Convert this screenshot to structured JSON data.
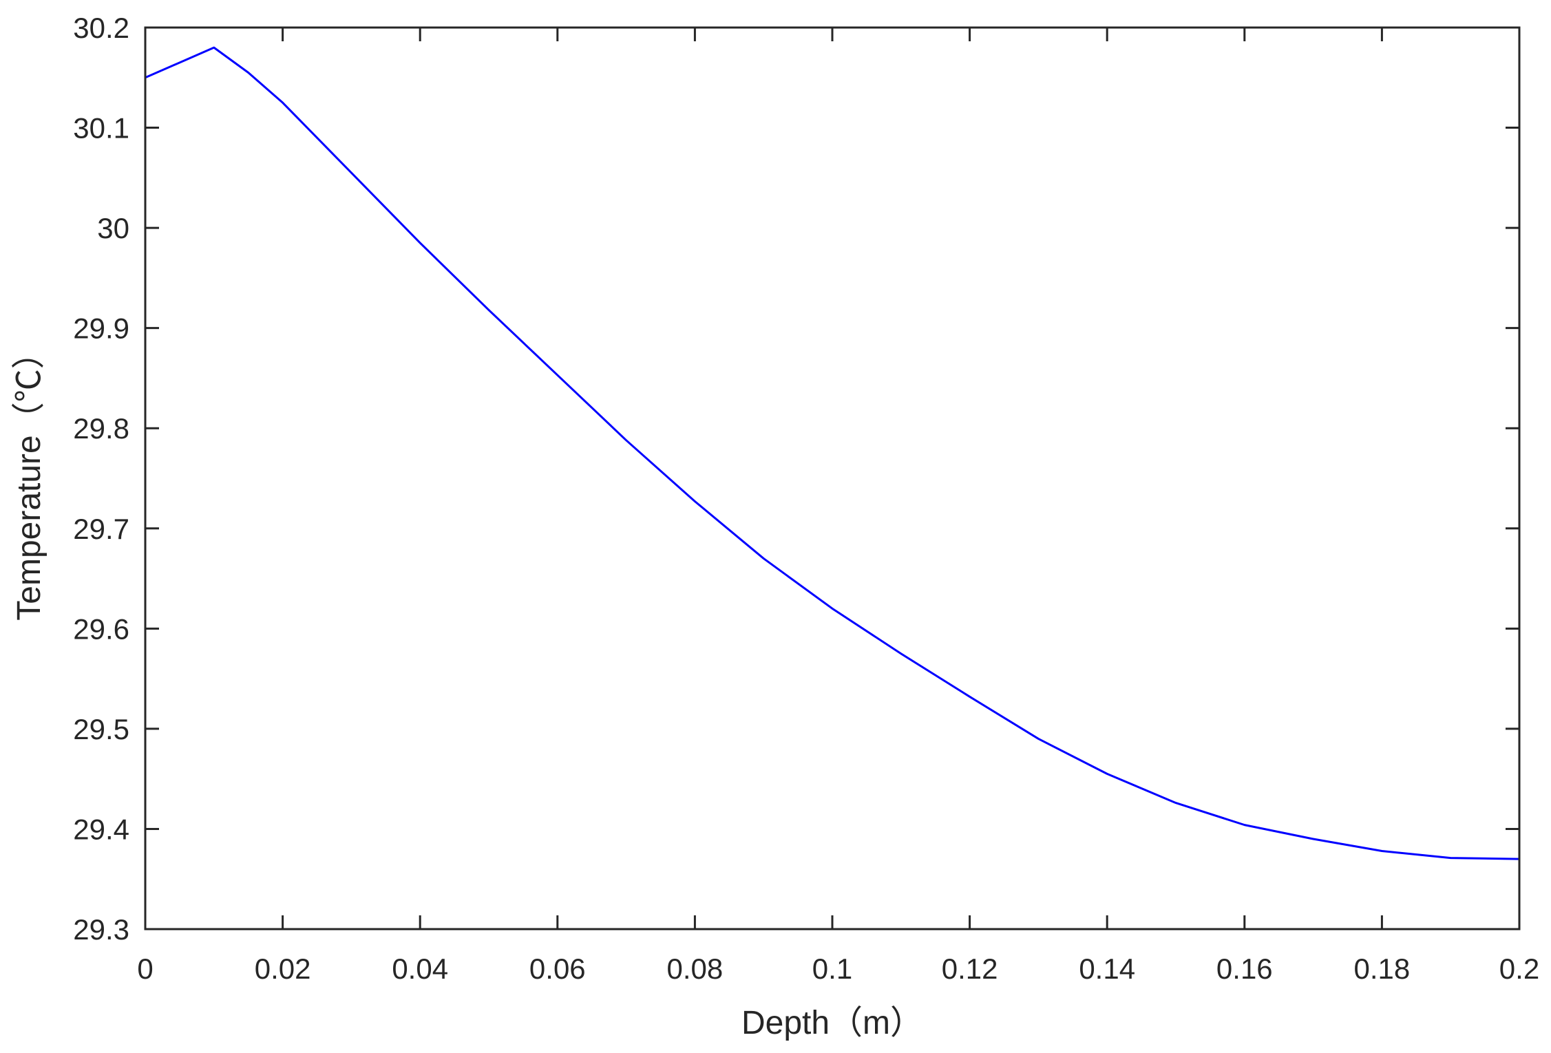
{
  "chart_data": {
    "type": "line",
    "title": "",
    "xlabel": "Depth（m）",
    "ylabel": "Temperature（℃）",
    "xlim": [
      0,
      0.2
    ],
    "ylim": [
      29.3,
      30.2
    ],
    "xticks": [
      0,
      0.02,
      0.04,
      0.06,
      0.08,
      0.1,
      0.12,
      0.14,
      0.16,
      0.18,
      0.2
    ],
    "xtick_labels": [
      "0",
      "0.02",
      "0.04",
      "0.06",
      "0.08",
      "0.1",
      "0.12",
      "0.14",
      "0.16",
      "0.18",
      "0.2"
    ],
    "yticks": [
      29.3,
      29.4,
      29.5,
      29.6,
      29.7,
      29.8,
      29.9,
      30,
      30.1,
      30.2
    ],
    "ytick_labels": [
      "29.3",
      "29.4",
      "29.5",
      "29.6",
      "29.7",
      "29.8",
      "29.9",
      "30",
      "30.1",
      "30.2"
    ],
    "grid": false,
    "box": true,
    "series": [
      {
        "color": "#0000ff",
        "x": [
          0,
          0.01,
          0.015,
          0.02,
          0.03,
          0.04,
          0.05,
          0.06,
          0.07,
          0.08,
          0.09,
          0.1,
          0.11,
          0.12,
          0.13,
          0.14,
          0.15,
          0.16,
          0.17,
          0.18,
          0.19,
          0.2
        ],
        "y": [
          30.15,
          30.18,
          30.155,
          30.125,
          30.055,
          29.985,
          29.918,
          29.853,
          29.788,
          29.727,
          29.67,
          29.62,
          29.575,
          29.532,
          29.49,
          29.455,
          29.426,
          29.404,
          29.39,
          29.378,
          29.371,
          29.37
        ]
      }
    ]
  }
}
